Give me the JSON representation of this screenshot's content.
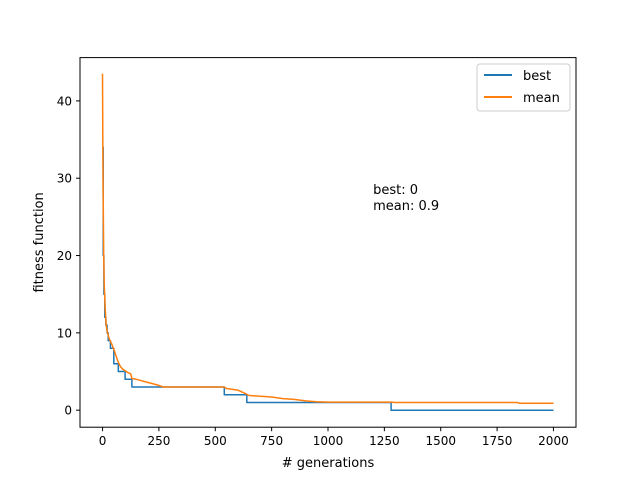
{
  "chart_data": {
    "type": "line",
    "title": "",
    "xlabel": "# generations",
    "ylabel": "fitness function",
    "xlim": [
      -100,
      2100
    ],
    "ylim": [
      -2.2,
      45.6
    ],
    "xticks": [
      0,
      250,
      500,
      750,
      1000,
      1250,
      1500,
      1750,
      2000
    ],
    "yticks": [
      0,
      10,
      20,
      30,
      40
    ],
    "grid": false,
    "legend_position": "top-right",
    "annotation": {
      "lines": [
        "best: 0",
        "mean: 0.9"
      ],
      "x": 1200,
      "y": 29.8
    },
    "series": [
      {
        "name": "best",
        "color": "#1f77b4",
        "step": true,
        "x": [
          0,
          3,
          6,
          10,
          15,
          20,
          25,
          35,
          50,
          70,
          100,
          130,
          160,
          540,
          640,
          1280,
          2000
        ],
        "y": [
          34,
          20,
          15,
          12,
          11,
          10,
          9,
          8,
          6,
          5,
          4,
          3,
          3,
          2,
          1,
          0,
          0
        ]
      },
      {
        "name": "mean",
        "color": "#ff7f0e",
        "step": false,
        "x": [
          0,
          2,
          5,
          8,
          12,
          16,
          20,
          25,
          30,
          40,
          50,
          60,
          70,
          80,
          90,
          100,
          110,
          125,
          130,
          150,
          200,
          250,
          270,
          540,
          550,
          600,
          630,
          650,
          700,
          750,
          800,
          850,
          900,
          950,
          1000,
          1100,
          1280,
          1300,
          1500,
          1840,
          1850,
          2000
        ],
        "y": [
          43.5,
          30,
          20,
          16,
          13,
          11,
          10.2,
          9.7,
          9.2,
          8.6,
          7.9,
          7.0,
          6.2,
          5.6,
          5.3,
          5.1,
          4.9,
          4.7,
          4.1,
          4.0,
          3.6,
          3.2,
          3.0,
          3.0,
          2.8,
          2.6,
          2.2,
          1.9,
          1.8,
          1.7,
          1.5,
          1.4,
          1.2,
          1.1,
          1.05,
          1.05,
          1.05,
          1.0,
          1.0,
          1.0,
          0.9,
          0.9
        ]
      }
    ]
  }
}
